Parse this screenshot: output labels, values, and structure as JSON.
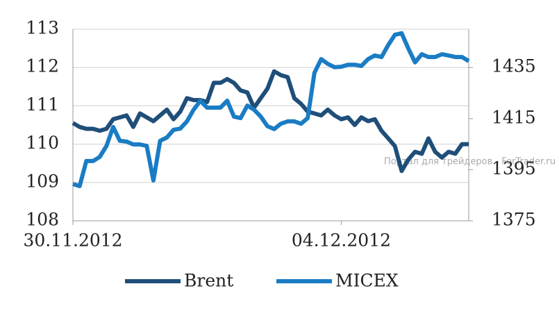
{
  "chart_data": {
    "type": "line",
    "categories": [
      "30.11.2012",
      null,
      null,
      null,
      null,
      null,
      null,
      null,
      null,
      null,
      null,
      null,
      null,
      null,
      null,
      null,
      null,
      null,
      null,
      null,
      null,
      null,
      null,
      null,
      null,
      null,
      null,
      null,
      null,
      null,
      null,
      null,
      null,
      null,
      null,
      null,
      null,
      null,
      null,
      null,
      "04.12.2012",
      null,
      null,
      null,
      null,
      null,
      null,
      null,
      null,
      null,
      null,
      null,
      null,
      null,
      null,
      null,
      null,
      null,
      null,
      null
    ],
    "series": [
      {
        "name": "Brent",
        "color": "#1f4e79",
        "values": [
          110.55,
          110.45,
          110.4,
          110.4,
          110.35,
          110.4,
          110.65,
          110.7,
          110.75,
          110.45,
          110.8,
          110.7,
          110.6,
          110.75,
          110.9,
          110.65,
          110.85,
          111.2,
          111.15,
          111.15,
          111.1,
          111.6,
          111.6,
          111.7,
          111.6,
          111.4,
          111.35,
          110.95,
          111.2,
          111.45,
          111.9,
          111.8,
          111.75,
          111.2,
          111.05,
          110.85,
          110.8,
          110.75,
          110.9,
          110.75,
          110.65,
          110.7,
          110.5,
          110.7,
          110.6,
          110.65,
          110.35,
          110.15,
          109.95,
          109.3,
          109.6,
          109.8,
          109.75,
          110.15,
          109.8,
          109.65,
          109.8,
          109.75,
          110.0,
          110.0
        ]
      },
      {
        "name": "MICEX",
        "color": "#1a7cc4",
        "axis": "y2",
        "values": [
          1389.4,
          1388.6,
          1398.4,
          1398.4,
          1400.0,
          1404.3,
          1411.7,
          1406.3,
          1406.0,
          1404.9,
          1404.9,
          1404.3,
          1390.8,
          1406.3,
          1407.6,
          1410.6,
          1411.1,
          1413.9,
          1418.5,
          1422.0,
          1419.3,
          1419.3,
          1419.3,
          1422.0,
          1415.8,
          1415.2,
          1420.1,
          1418.5,
          1415.8,
          1412.0,
          1410.9,
          1413.0,
          1413.9,
          1413.9,
          1413.0,
          1415.2,
          1432.9,
          1438.3,
          1436.4,
          1435.1,
          1435.3,
          1436.1,
          1436.1,
          1435.6,
          1438.3,
          1439.7,
          1439.1,
          1443.8,
          1447.8,
          1448.4,
          1442.4,
          1437.0,
          1440.2,
          1439.1,
          1439.1,
          1440.2,
          1439.7,
          1439.1,
          1439.1,
          1437.5
        ]
      }
    ],
    "ylim": [
      108,
      113
    ],
    "yticks": [
      108,
      109,
      110,
      111,
      112,
      113
    ],
    "y2lim": [
      1375,
      1450
    ],
    "y2ticks": [
      1375,
      1395,
      1415,
      1435
    ],
    "grid": true,
    "legend": "bottom",
    "watermark": "Портал для трейдеров - ForTrader.ru"
  }
}
